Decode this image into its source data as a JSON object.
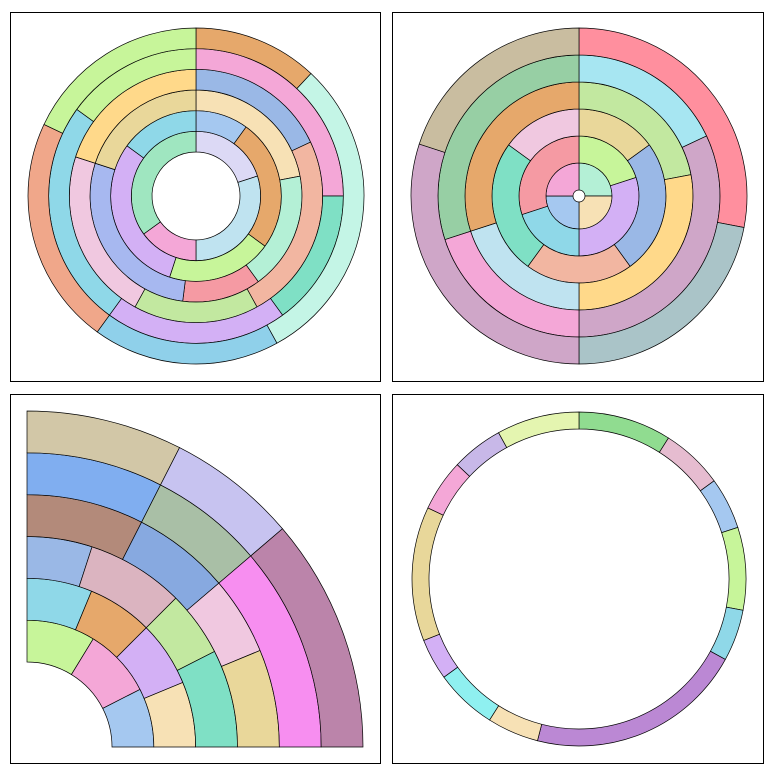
{
  "panels": [
    {
      "id": "sunburst-top-left",
      "label": "",
      "palette": [
        "#f4a7d7",
        "#c7f59a",
        "#a5c8f0",
        "#f7e1b5",
        "#8fd8e8",
        "#e6a86b",
        "#b4f0d6",
        "#d3b0f5",
        "#f59aa3",
        "#c2e8a0",
        "#a7e6f2",
        "#e9d79a",
        "#9ab8e6",
        "#f2b6a1",
        "#7fe0c5",
        "#f0c8e0",
        "#bfe3f0",
        "#ffd98a"
      ],
      "rings": [
        [
          {
            "v": 0.2,
            "c": "#dcd9f5"
          },
          {
            "v": 0.3,
            "c": "#bfe3f0"
          },
          {
            "v": 0.15,
            "c": "#f4a7d7"
          },
          {
            "v": 0.35,
            "c": "#9fe6c0"
          }
        ],
        [
          {
            "v": 0.1,
            "c": "#a5c8f0"
          },
          {
            "v": 0.25,
            "c": "#e6a86b"
          },
          {
            "v": 0.2,
            "c": "#c7f59a"
          },
          {
            "v": 0.3,
            "c": "#d3b0f5"
          },
          {
            "v": 0.15,
            "c": "#8fd8e8"
          }
        ],
        [
          {
            "v": 0.22,
            "c": "#f7e1b5"
          },
          {
            "v": 0.18,
            "c": "#b4f0d6"
          },
          {
            "v": 0.12,
            "c": "#f59aa3"
          },
          {
            "v": 0.28,
            "c": "#a7b8f0"
          },
          {
            "v": 0.2,
            "c": "#e9d79a"
          }
        ],
        [
          {
            "v": 0.18,
            "c": "#9ab8e6"
          },
          {
            "v": 0.24,
            "c": "#f2b6a1"
          },
          {
            "v": 0.16,
            "c": "#c2e8a0"
          },
          {
            "v": 0.22,
            "c": "#f0c8e0"
          },
          {
            "v": 0.2,
            "c": "#ffd98a"
          }
        ],
        [
          {
            "v": 0.25,
            "c": "#f4a7d7"
          },
          {
            "v": 0.15,
            "c": "#7fe0c5"
          },
          {
            "v": 0.2,
            "c": "#d3b0f5"
          },
          {
            "v": 0.25,
            "c": "#8fd8e8"
          },
          {
            "v": 0.15,
            "c": "#c7f59a"
          }
        ],
        [
          {
            "v": 0.12,
            "c": "#e6a86b"
          },
          {
            "v": 0.3,
            "c": "#c4f5e6"
          },
          {
            "v": 0.18,
            "c": "#8fd0ea"
          },
          {
            "v": 0.22,
            "c": "#f0a78a"
          },
          {
            "v": 0.18,
            "c": "#c7f59a"
          }
        ]
      ]
    },
    {
      "id": "sunburst-top-right",
      "label": "",
      "palette": [],
      "rings": [
        [
          {
            "v": 0.25,
            "c": "#b4f0d6"
          },
          {
            "v": 0.25,
            "c": "#f7e1b5"
          },
          {
            "v": 0.25,
            "c": "#a5c8f0"
          },
          {
            "v": 0.25,
            "c": "#f4a7d7"
          }
        ],
        [
          {
            "v": 0.2,
            "c": "#c7f59a"
          },
          {
            "v": 0.3,
            "c": "#d3b0f5"
          },
          {
            "v": 0.2,
            "c": "#8fd8e8"
          },
          {
            "v": 0.3,
            "c": "#f59aa3"
          }
        ],
        [
          {
            "v": 0.15,
            "c": "#e9d79a"
          },
          {
            "v": 0.25,
            "c": "#9ab8e6"
          },
          {
            "v": 0.2,
            "c": "#f2b6a1"
          },
          {
            "v": 0.25,
            "c": "#7fe0c5"
          },
          {
            "v": 0.15,
            "c": "#f0c8e0"
          }
        ],
        [
          {
            "v": 0.22,
            "c": "#c2e8a0"
          },
          {
            "v": 0.28,
            "c": "#ffd98a"
          },
          {
            "v": 0.2,
            "c": "#bfe3f0"
          },
          {
            "v": 0.3,
            "c": "#e6a86b"
          }
        ],
        [
          {
            "v": 0.18,
            "c": "#a7e6f2"
          },
          {
            "v": 0.32,
            "c": "#cfa6c8"
          },
          {
            "v": 0.2,
            "c": "#f4a7d7"
          },
          {
            "v": 0.3,
            "c": "#97cfa4"
          }
        ],
        [
          {
            "v": 0.28,
            "c": "#ff8f9e"
          },
          {
            "v": 0.22,
            "c": "#aac4c8"
          },
          {
            "v": 0.3,
            "c": "#cfa6c8"
          },
          {
            "v": 0.2,
            "c": "#c9bda0"
          }
        ]
      ]
    },
    {
      "id": "sunburst-bottom-left",
      "label": "",
      "palette": [],
      "rings": [
        [
          {
            "v": 0.35,
            "c": "#c7f59a"
          },
          {
            "v": 0.35,
            "c": "#f4a7d7"
          },
          {
            "v": 0.3,
            "c": "#a5c8f0"
          }
        ],
        [
          {
            "v": 0.25,
            "c": "#8fd8e8"
          },
          {
            "v": 0.25,
            "c": "#e6a86b"
          },
          {
            "v": 0.25,
            "c": "#d3b0f5"
          },
          {
            "v": 0.25,
            "c": "#f7e1b5"
          }
        ],
        [
          {
            "v": 0.2,
            "c": "#9ab8e6"
          },
          {
            "v": 0.3,
            "c": "#dbb4c0"
          },
          {
            "v": 0.2,
            "c": "#c2e8a0"
          },
          {
            "v": 0.3,
            "c": "#7fe0c5"
          }
        ],
        [
          {
            "v": 0.3,
            "c": "#b38a7a"
          },
          {
            "v": 0.25,
            "c": "#87a9e0"
          },
          {
            "v": 0.2,
            "c": "#f0c8e0"
          },
          {
            "v": 0.25,
            "c": "#e9d79a"
          }
        ],
        [
          {
            "v": 0.3,
            "c": "#80aef0"
          },
          {
            "v": 0.25,
            "c": "#a9bfa6"
          },
          {
            "v": 0.45,
            "c": "#f78ef0"
          }
        ],
        [
          {
            "v": 0.3,
            "c": "#d2c7a7"
          },
          {
            "v": 0.25,
            "c": "#c7c3f0"
          },
          {
            "v": 0.45,
            "c": "#bb84aa"
          }
        ]
      ]
    },
    {
      "id": "ring-bottom-right",
      "label": "",
      "palette": [],
      "rings": [
        [
          {
            "v": 0.09,
            "c": "#90dc90"
          },
          {
            "v": 0.06,
            "c": "#e6bcd0"
          },
          {
            "v": 0.05,
            "c": "#a5c8f0"
          },
          {
            "v": 0.08,
            "c": "#c7f59a"
          },
          {
            "v": 0.05,
            "c": "#8fd8e8"
          },
          {
            "v": 0.21,
            "c": "#bb88d4"
          },
          {
            "v": 0.05,
            "c": "#f7e1b5"
          },
          {
            "v": 0.06,
            "c": "#8ff0f0"
          },
          {
            "v": 0.04,
            "c": "#d3b0f5"
          },
          {
            "v": 0.13,
            "c": "#e8d79a"
          },
          {
            "v": 0.05,
            "c": "#f4a7d7"
          },
          {
            "v": 0.05,
            "c": "#c8b8e8"
          },
          {
            "v": 0.08,
            "c": "#e4f5b0"
          }
        ]
      ]
    }
  ]
}
